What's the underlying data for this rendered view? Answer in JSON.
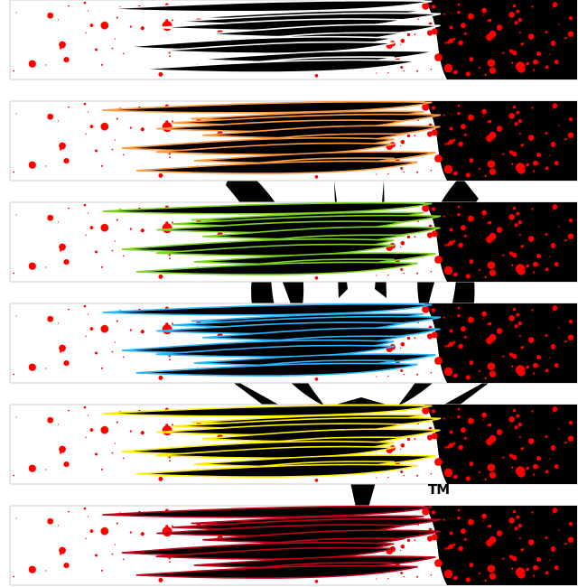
{
  "artwork": {
    "trademark": "TM",
    "background_color": "#ffffff",
    "splatter_color": "#ff0000",
    "emblem_color": "#000000",
    "banners": [
      {
        "flame_glow": "#ffffff",
        "flame_fill": "#000000"
      },
      {
        "flame_glow": "#ff9a40",
        "flame_fill": "#000000"
      },
      {
        "flame_glow": "#7ed321",
        "flame_fill": "#000000"
      },
      {
        "flame_glow": "#29b6ff",
        "flame_fill": "#000000"
      },
      {
        "flame_glow": "#ffee00",
        "flame_fill": "#000000"
      },
      {
        "flame_glow": "#c0001a",
        "flame_fill": "#000000"
      }
    ]
  }
}
